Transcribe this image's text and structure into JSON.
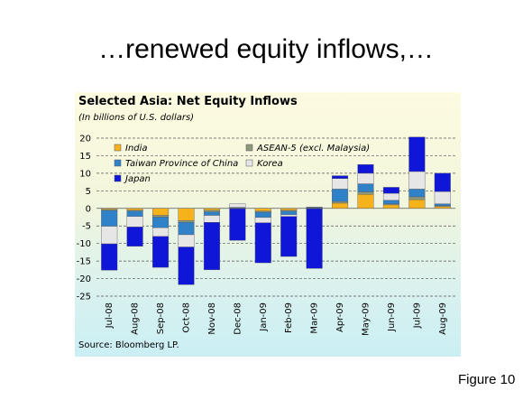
{
  "slide": {
    "title": "…renewed equity inflows,…",
    "figure_label": "Figure 10"
  },
  "chart_data": {
    "type": "bar",
    "stacked": true,
    "title": "Selected Asia: Net Equity Inflows",
    "subtitle": "(In billions of U.S. dollars)",
    "source": "Source: Bloomberg LP.",
    "ylim": [
      -25,
      20
    ],
    "yticks": [
      20,
      15,
      10,
      5,
      0,
      -5,
      -10,
      -15,
      -20,
      -25
    ],
    "grid": "horizontal dashed",
    "legend_position": "top-left",
    "categories": [
      "Jul-08",
      "Aug-08",
      "Sep-08",
      "Oct-08",
      "Nov-08",
      "Dec-08",
      "Jan-09",
      "Feb-09",
      "Mar-09",
      "Apr-09",
      "May-09",
      "Jun-09",
      "Jul-09",
      "Aug-09"
    ],
    "series": [
      {
        "name": "India",
        "color": "#f5b21b",
        "values": [
          -0.3,
          -0.5,
          -2.0,
          -3.5,
          -0.5,
          -0.1,
          -0.8,
          -0.5,
          -0.1,
          1.5,
          4.0,
          1.0,
          2.5,
          0.5
        ]
      },
      {
        "name": "ASEAN-5 (excl. Malaysia)",
        "color": "#8c9a7a",
        "values": [
          -0.3,
          -0.3,
          -0.5,
          -0.5,
          -0.5,
          0.1,
          -0.3,
          -0.3,
          0.1,
          0.5,
          0.7,
          0.3,
          0.8,
          0.3
        ]
      },
      {
        "name": "Taiwan Province of China",
        "color": "#2f82c7",
        "values": [
          -4.5,
          -1.5,
          -3.0,
          -3.5,
          -1.0,
          0.2,
          -1.5,
          -1.0,
          0.2,
          3.5,
          2.3,
          1.0,
          2.2,
          0.5
        ]
      },
      {
        "name": "Korea",
        "color": "#e6e6e6",
        "values": [
          -5.0,
          -3.0,
          -2.5,
          -3.5,
          -2.0,
          1.0,
          -1.5,
          -0.5,
          0.1,
          3.0,
          3.0,
          2.0,
          5.0,
          3.5
        ]
      },
      {
        "name": "Japan",
        "color": "#0f16d8",
        "values": [
          -7.5,
          -5.5,
          -8.8,
          -10.7,
          -13.5,
          -9.0,
          -11.4,
          -11.4,
          -17.0,
          0.8,
          2.5,
          1.7,
          9.8,
          5.2
        ]
      }
    ]
  }
}
